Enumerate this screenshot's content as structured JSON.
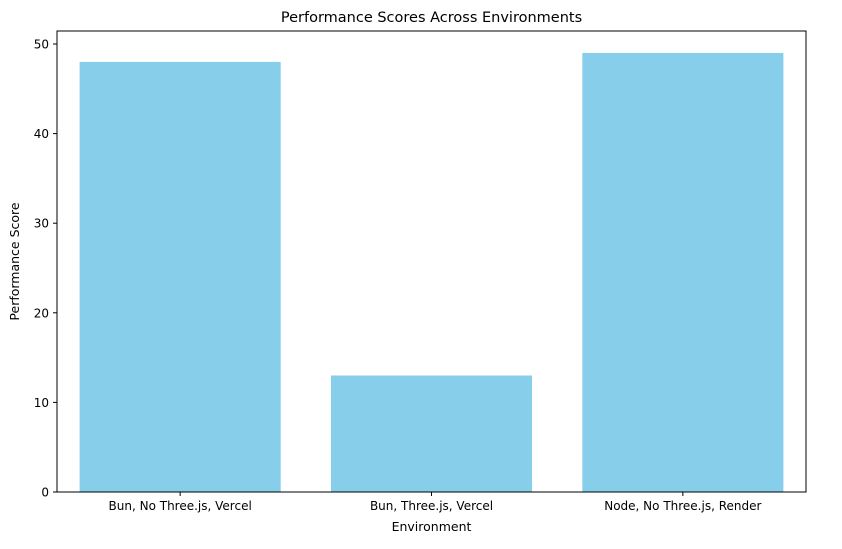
{
  "chart_data": {
    "type": "bar",
    "title": "Performance Scores Across Environments",
    "xlabel": "Environment",
    "ylabel": "Performance Score",
    "categories": [
      "Bun, No Three.js, Vercel",
      "Bun, Three.js, Vercel",
      "Node, No Three.js, Render"
    ],
    "values": [
      48,
      13,
      49
    ],
    "ylim": [
      0,
      51.45
    ],
    "yticks": [
      0,
      10,
      20,
      30,
      40,
      50
    ],
    "grid": false,
    "legend": "none",
    "bar_color": "#87CEEB"
  }
}
